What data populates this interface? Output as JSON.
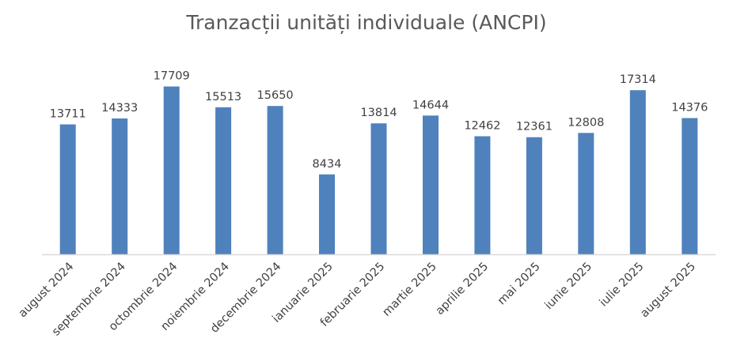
{
  "chart_data": {
    "type": "bar",
    "title": "Tranzacții unități individuale (ANCPI)",
    "categories": [
      "august 2024",
      "septembrie 2024",
      "octombrie 2024",
      "noiembrie 2024",
      "decembrie 2024",
      "ianuarie 2025",
      "februarie 2025",
      "martie 2025",
      "aprilie 2025",
      "mai 2025",
      "iunie 2025",
      "iulie 2025",
      "august 2025"
    ],
    "values": [
      13711,
      14333,
      17709,
      15513,
      15650,
      8434,
      13814,
      14644,
      12462,
      12361,
      12808,
      17314,
      14376
    ],
    "ylim": [
      0,
      20000
    ],
    "grid": false,
    "legend": "none",
    "bar_color": "#4f81bd",
    "axis_color": "#d9d9d9",
    "data_labels": true
  }
}
